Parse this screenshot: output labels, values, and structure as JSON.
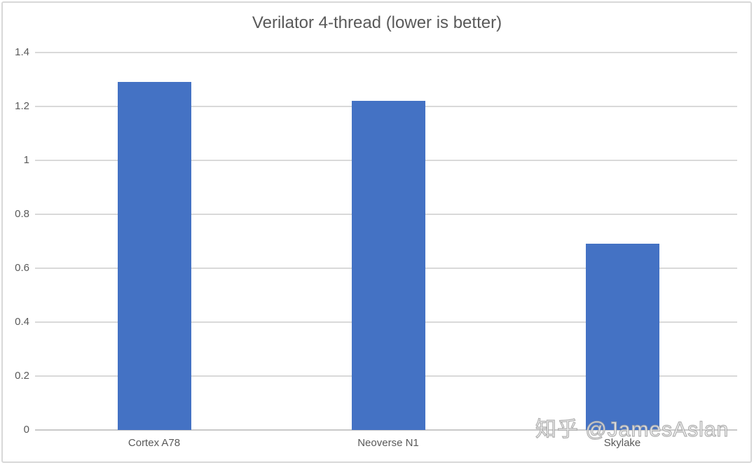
{
  "chart_data": {
    "type": "bar",
    "title": "Verilator 4-thread (lower is better)",
    "categories": [
      "Cortex A78",
      "Neoverse N1",
      "Skylake"
    ],
    "values": [
      1.29,
      1.22,
      0.69
    ],
    "xlabel": "",
    "ylabel": "",
    "ylim": [
      0,
      1.4
    ],
    "ytick_step": 0.2,
    "ytick_labels": [
      "0",
      "0.2",
      "0.4",
      "0.6",
      "0.8",
      "1",
      "1.2",
      "1.4"
    ],
    "grid": true,
    "legend": false,
    "bar_color": "#4472c4",
    "gridline_color": "#d9d9d9",
    "text_color": "#595959"
  },
  "watermark": {
    "text": "知乎 @JamesAslan"
  }
}
